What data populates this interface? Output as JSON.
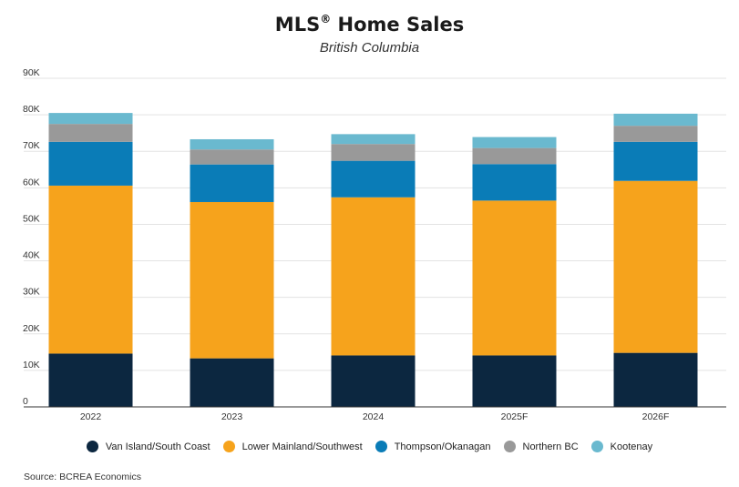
{
  "header": {
    "title": "MLS",
    "title_mark": "®",
    "title_rest": " Home Sales",
    "subtitle": "British Columbia"
  },
  "source": "Source: BCREA Economics",
  "chart_data": {
    "type": "bar",
    "stacked": true,
    "categories": [
      "2022",
      "2023",
      "2024",
      "2025F",
      "2026F"
    ],
    "y_ticks": [
      "0",
      "10K",
      "20K",
      "30K",
      "40K",
      "50K",
      "60K",
      "70K",
      "80K",
      "90K"
    ],
    "ylim": [
      0,
      90000
    ],
    "grid": true,
    "legend_position": "bottom",
    "series": [
      {
        "name": "Van Island/South Coast",
        "color": "#0c2740",
        "values": [
          14600,
          13300,
          14100,
          14100,
          14800
        ]
      },
      {
        "name": "Lower Mainland/Southwest",
        "color": "#f6a31c",
        "values": [
          46000,
          42800,
          43300,
          42400,
          47100
        ]
      },
      {
        "name": "Thompson/Okanagan",
        "color": "#0a7cb7",
        "values": [
          12000,
          10300,
          10000,
          10000,
          10700
        ]
      },
      {
        "name": "Northern BC",
        "color": "#999999",
        "values": [
          4900,
          4100,
          4600,
          4400,
          4400
        ]
      },
      {
        "name": "Kootenay",
        "color": "#6ab9cf",
        "values": [
          3000,
          2800,
          2700,
          3000,
          3300
        ]
      }
    ]
  }
}
